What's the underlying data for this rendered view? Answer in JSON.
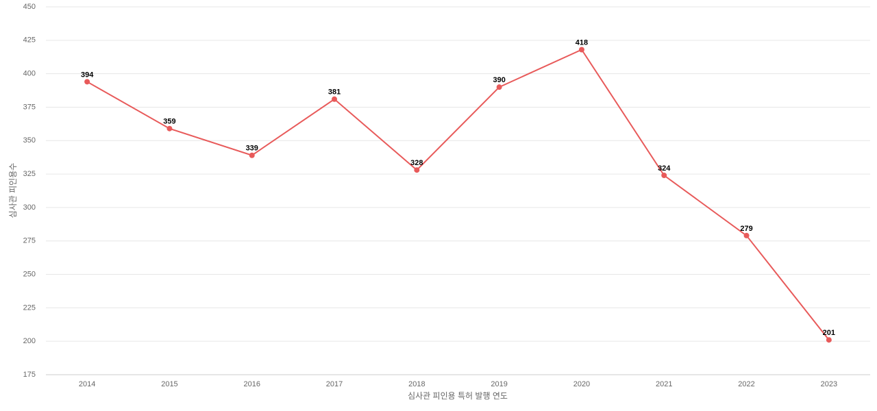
{
  "chart_data": {
    "type": "line",
    "x_label": "심사관 피인용 특허 발행 연도",
    "y_label": "심사관 피인용수",
    "categories": [
      "2014",
      "2015",
      "2016",
      "2017",
      "2018",
      "2019",
      "2020",
      "2021",
      "2022",
      "2023"
    ],
    "series": [
      {
        "name": "심사관 피인용수",
        "color": "#e85a5a",
        "values": [
          394,
          359,
          339,
          381,
          328,
          390,
          418,
          324,
          279,
          201
        ]
      }
    ],
    "ylim": [
      175,
      450
    ],
    "yticks": [
      175,
      200,
      225,
      250,
      275,
      300,
      325,
      350,
      375,
      400,
      425,
      450
    ],
    "grid": true
  }
}
